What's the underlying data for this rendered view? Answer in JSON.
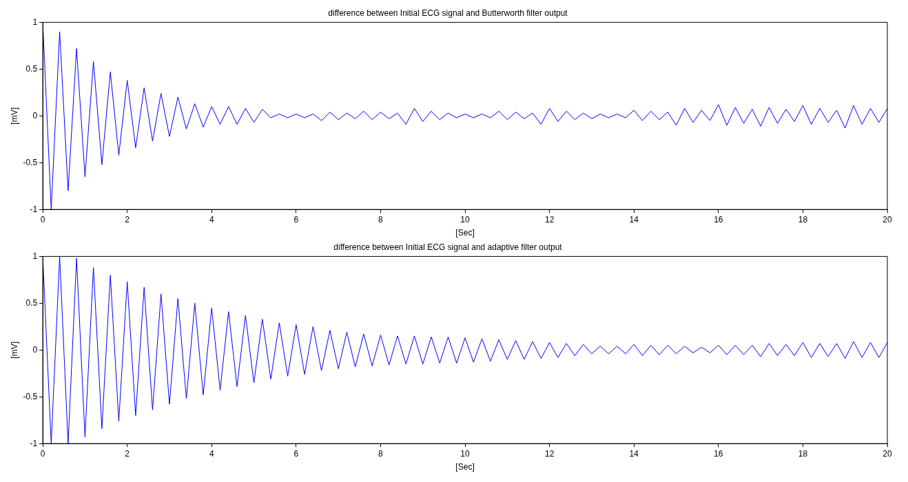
{
  "chart_data": [
    {
      "type": "line",
      "title": "difference between Initial ECG signal and Butterworth filter output",
      "xlabel": "[Sec]",
      "ylabel": "[mV]",
      "xlim": [
        0,
        20
      ],
      "xticks": [
        0,
        2,
        4,
        6,
        8,
        10,
        12,
        14,
        16,
        18,
        20
      ],
      "ylim": [
        -1,
        1
      ],
      "yticks": [
        -1,
        -0.5,
        0,
        0.5,
        1
      ],
      "marker": "none",
      "x": [
        0,
        0.2,
        0.4,
        0.6,
        0.8,
        1,
        1.2,
        1.4,
        1.6,
        1.8,
        2,
        2.2,
        2.4,
        2.6,
        2.8,
        3,
        3.2,
        3.4,
        3.6,
        3.8,
        4,
        4.2,
        4.4,
        4.6,
        4.8,
        5,
        5.2,
        5.4,
        5.6,
        5.8,
        6,
        6.2,
        6.4,
        6.6,
        6.8,
        7,
        7.2,
        7.4,
        7.6,
        7.8,
        8,
        8.2,
        8.4,
        8.6,
        8.8,
        9,
        9.2,
        9.4,
        9.6,
        9.8,
        10,
        10.2,
        10.4,
        10.6,
        10.8,
        11,
        11.2,
        11.4,
        11.6,
        11.8,
        12,
        12.2,
        12.4,
        12.6,
        12.8,
        13,
        13.2,
        13.4,
        13.6,
        13.8,
        14,
        14.2,
        14.4,
        14.6,
        14.8,
        15,
        15.2,
        15.4,
        15.6,
        15.8,
        16,
        16.2,
        16.4,
        16.6,
        16.8,
        17,
        17.2,
        17.4,
        17.6,
        17.8,
        18,
        18.2,
        18.4,
        18.6,
        18.8,
        19,
        19.2,
        19.4,
        19.6,
        19.8,
        20
      ],
      "series": [
        {
          "color": "#0000ff",
          "values": [
            1,
            -1,
            0.9,
            -0.8,
            0.72,
            -0.65,
            0.58,
            -0.52,
            0.47,
            -0.42,
            0.38,
            -0.34,
            0.3,
            -0.27,
            0.24,
            -0.22,
            0.2,
            -0.14,
            0.13,
            -0.12,
            0.1,
            -0.09,
            0.1,
            -0.09,
            0.08,
            -0.07,
            0.07,
            -0.02,
            0.02,
            -0.02,
            0.02,
            -0.02,
            0.02,
            -0.05,
            0.04,
            -0.04,
            0.03,
            -0.03,
            0.05,
            -0.04,
            0.04,
            -0.03,
            0.03,
            -0.09,
            0.08,
            -0.06,
            0.05,
            -0.04,
            0.03,
            -0.02,
            0.02,
            -0.02,
            0.02,
            -0.02,
            0.05,
            -0.04,
            0.04,
            -0.03,
            0.03,
            -0.09,
            0.08,
            -0.06,
            0.05,
            -0.04,
            0.03,
            -0.03,
            0.02,
            -0.02,
            0.02,
            -0.02,
            0.06,
            -0.05,
            0.05,
            -0.04,
            0.04,
            -0.1,
            0.08,
            -0.07,
            0.06,
            -0.05,
            0.12,
            -0.1,
            0.09,
            -0.08,
            0.07,
            -0.11,
            0.09,
            -0.08,
            0.07,
            -0.06,
            0.11,
            -0.09,
            0.08,
            -0.07,
            0.06,
            -0.13,
            0.11,
            -0.09,
            0.08,
            -0.07,
            0.08
          ]
        }
      ]
    },
    {
      "type": "line",
      "title": "difference between Initial ECG signal and adaptive filter output",
      "xlabel": "[Sec]",
      "ylabel": "[mV]",
      "xlim": [
        0,
        20
      ],
      "xticks": [
        0,
        2,
        4,
        6,
        8,
        10,
        12,
        14,
        16,
        18,
        20
      ],
      "ylim": [
        -1,
        1
      ],
      "yticks": [
        -1,
        -0.5,
        0,
        0.5,
        1
      ],
      "marker": "none",
      "x": [
        0,
        0.2,
        0.4,
        0.6,
        0.8,
        1,
        1.2,
        1.4,
        1.6,
        1.8,
        2,
        2.2,
        2.4,
        2.6,
        2.8,
        3,
        3.2,
        3.4,
        3.6,
        3.8,
        4,
        4.2,
        4.4,
        4.6,
        4.8,
        5,
        5.2,
        5.4,
        5.6,
        5.8,
        6,
        6.2,
        6.4,
        6.6,
        6.8,
        7,
        7.2,
        7.4,
        7.6,
        7.8,
        8,
        8.2,
        8.4,
        8.6,
        8.8,
        9,
        9.2,
        9.4,
        9.6,
        9.8,
        10,
        10.2,
        10.4,
        10.6,
        10.8,
        11,
        11.2,
        11.4,
        11.6,
        11.8,
        12,
        12.2,
        12.4,
        12.6,
        12.8,
        13,
        13.2,
        13.4,
        13.6,
        13.8,
        14,
        14.2,
        14.4,
        14.6,
        14.8,
        15,
        15.2,
        15.4,
        15.6,
        15.8,
        16,
        16.2,
        16.4,
        16.6,
        16.8,
        17,
        17.2,
        17.4,
        17.6,
        17.8,
        18,
        18.2,
        18.4,
        18.6,
        18.8,
        19,
        19.2,
        19.4,
        19.6,
        19.8,
        20
      ],
      "series": [
        {
          "color": "#0000ff",
          "values": [
            1,
            -1,
            1,
            -1,
            0.98,
            -0.93,
            0.88,
            -0.84,
            0.8,
            -0.76,
            0.73,
            -0.7,
            0.67,
            -0.64,
            0.6,
            -0.58,
            0.55,
            -0.52,
            0.5,
            -0.48,
            0.45,
            -0.43,
            0.41,
            -0.39,
            0.37,
            -0.35,
            0.33,
            -0.31,
            0.29,
            -0.28,
            0.27,
            -0.26,
            0.25,
            -0.22,
            0.21,
            -0.2,
            0.19,
            -0.18,
            0.17,
            -0.17,
            0.16,
            -0.16,
            0.15,
            -0.15,
            0.15,
            -0.15,
            0.14,
            -0.14,
            0.14,
            -0.14,
            0.13,
            -0.13,
            0.12,
            -0.12,
            0.11,
            -0.1,
            0.1,
            -0.1,
            0.09,
            -0.09,
            0.08,
            -0.08,
            0.07,
            -0.06,
            0.06,
            -0.04,
            0.04,
            -0.04,
            0.04,
            -0.04,
            0.06,
            -0.06,
            0.05,
            -0.05,
            0.05,
            -0.04,
            0.04,
            -0.03,
            0.03,
            -0.03,
            0.05,
            -0.05,
            0.05,
            -0.05,
            0.05,
            -0.07,
            0.07,
            -0.06,
            0.06,
            -0.06,
            0.08,
            -0.08,
            0.07,
            -0.07,
            0.07,
            -0.09,
            0.09,
            -0.08,
            0.08,
            -0.08,
            0.08
          ]
        }
      ]
    }
  ]
}
